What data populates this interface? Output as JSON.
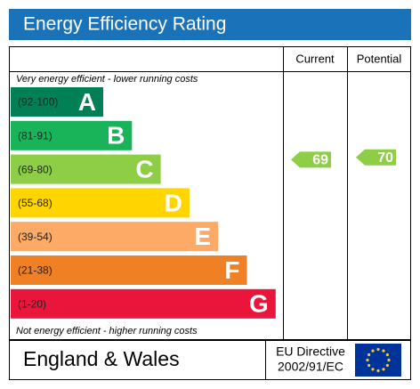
{
  "header": {
    "title": "Energy Efficiency Rating"
  },
  "columns": [
    "Current",
    "Potential"
  ],
  "top_note": "Very energy efficient - lower running costs",
  "bottom_note": "Not energy efficient - higher running costs",
  "bands": [
    {
      "range": "(92-100)",
      "letter": "A",
      "color": "#008054"
    },
    {
      "range": "(81-91)",
      "letter": "B",
      "color": "#19b459"
    },
    {
      "range": "(69-80)",
      "letter": "C",
      "color": "#8dce46"
    },
    {
      "range": "(55-68)",
      "letter": "D",
      "color": "#ffd500"
    },
    {
      "range": "(39-54)",
      "letter": "E",
      "color": "#fcaa65"
    },
    {
      "range": "(21-38)",
      "letter": "F",
      "color": "#ef8023"
    },
    {
      "range": "(1-20)",
      "letter": "G",
      "color": "#e9153b"
    }
  ],
  "ratings": [
    {
      "value": 69,
      "color": "#8dce46"
    },
    {
      "value": 70,
      "color": "#8dce46"
    }
  ],
  "footer": {
    "region": "England & Wales",
    "directive": [
      "EU Directive",
      "2002/91/EC"
    ]
  }
}
